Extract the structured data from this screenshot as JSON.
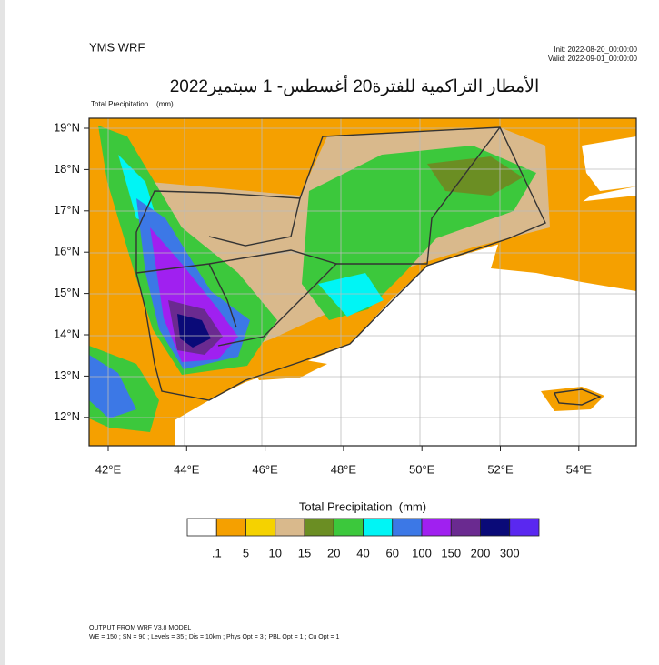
{
  "header": {
    "model": "YMS WRF",
    "init": "Init: 2022-08-20_00:00:00",
    "valid": "Valid: 2022-09-01_00:00:00",
    "title": "الأمطار التراكمية للفترة20 أغسطس- 1 سبتمير2022",
    "subtitle": "Total Precipitation    (mm)"
  },
  "map": {
    "lat_labels": [
      "19°N",
      "18°N",
      "17°N",
      "16°N",
      "15°N",
      "14°N",
      "13°N",
      "12°N"
    ],
    "lon_labels": [
      "42°E",
      "44°E",
      "46°E",
      "48°E",
      "50°E",
      "52°E",
      "54°E"
    ]
  },
  "colorbar": {
    "title": "Total Precipitation  (mm)",
    "colors": [
      "#ffffff",
      "#f5a000",
      "#f5d200",
      "#d9b98c",
      "#6b8e23",
      "#3cc83c",
      "#00f5f5",
      "#3c78e6",
      "#a020f0",
      "#6a2a90",
      "#0a0a78",
      "#5a28f0"
    ],
    "labels": [
      ".1",
      "5",
      "10",
      "15",
      "20",
      "40",
      "60",
      "100",
      "150",
      "200",
      "300"
    ]
  },
  "footer": {
    "line1": "OUTPUT FROM WRF V3.8 MODEL",
    "line2": "WE = 150 ; SN = 90 ; Levels = 35 ; Dis = 10km ; Phys Opt = 3 ; PBL Opt = 1 ; Cu Opt = 1"
  }
}
